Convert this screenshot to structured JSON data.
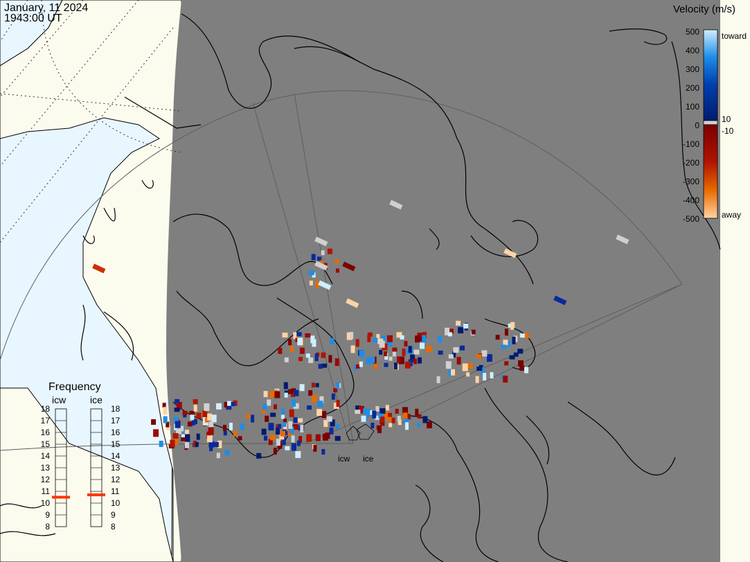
{
  "header": {
    "date": "January, 11 2024",
    "time": "1943:00 UT"
  },
  "velocity_scale": {
    "title": "Velocity (m/s)",
    "ticks": [
      "500",
      "400",
      "300",
      "200",
      "100",
      "0",
      "-100",
      "-200",
      "-300",
      "-400",
      "-500"
    ],
    "toward_label": "toward",
    "away_label": "away",
    "pos_threshold": "10",
    "neg_threshold": "-10",
    "colors": {
      "toward_light": "#cfeeff",
      "toward_dark": "#001a6e",
      "away_dark": "#7a0000",
      "away_light": "#ffd3a5"
    }
  },
  "frequency_panel": {
    "title": "Frequency",
    "radars": [
      {
        "label": "icw",
        "frequency_mhz": 10.5
      },
      {
        "label": "ice",
        "frequency_mhz": 10.7
      }
    ],
    "ticks": [
      "18",
      "17",
      "16",
      "15",
      "14",
      "13",
      "12",
      "11",
      "10",
      "9",
      "8"
    ]
  },
  "radar_labels": [
    "icw",
    "ice"
  ],
  "colors": {
    "night_shade": "#7f7f7f",
    "land_day": "#fbfcee",
    "sea_day": "#e8f6ff",
    "coastline": "#000000",
    "grid": "#5e5e5e",
    "frequency_marker": "#ff3300"
  }
}
